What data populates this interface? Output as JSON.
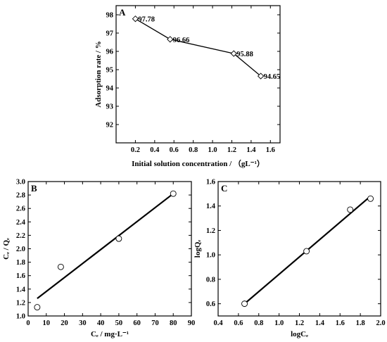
{
  "chart_data": [
    {
      "id": "A",
      "type": "line",
      "panel_label": "A",
      "title": "",
      "xlabel": "Initial solution concentration / （gL⁻¹）",
      "ylabel": "Adsorption rate / %",
      "xlim": [
        0.0,
        1.7
      ],
      "ylim": [
        91,
        98.5
      ],
      "x_ticks": [
        0.2,
        0.4,
        0.6,
        0.8,
        1.0,
        1.2,
        1.4,
        1.6
      ],
      "x_tick_labels": [
        "0.2",
        "0.4",
        "0.6",
        "0.8",
        "1.0",
        "1.2",
        "1.4",
        "1.6"
      ],
      "y_ticks": [
        92,
        93,
        94,
        95,
        96,
        97,
        98
      ],
      "y_tick_labels": [
        "92",
        "93",
        "94",
        "95",
        "96",
        "97",
        "98"
      ],
      "series": [
        {
          "marker": "diamond",
          "x": [
            0.2,
            0.56,
            1.22,
            1.5
          ],
          "y": [
            97.78,
            96.66,
            95.88,
            94.65
          ],
          "labels": [
            "97.78",
            "96.66",
            "95.88",
            "94.65"
          ]
        }
      ],
      "grid": false
    },
    {
      "id": "B",
      "type": "scatter",
      "panel_label": "B",
      "title": "",
      "xlabel": "Cₑ / mg·L⁻¹",
      "ylabel": "Cₑ / Qₑ",
      "xlim": [
        0,
        90
      ],
      "ylim": [
        1.0,
        3.0
      ],
      "x_ticks": [
        0,
        10,
        20,
        30,
        40,
        50,
        60,
        70,
        80,
        90
      ],
      "x_tick_labels": [
        "0",
        "10",
        "20",
        "30",
        "40",
        "50",
        "60",
        "70",
        "80",
        "90"
      ],
      "y_ticks": [
        1.0,
        1.2,
        1.4,
        1.6,
        1.8,
        2.0,
        2.2,
        2.4,
        2.6,
        2.8,
        3.0
      ],
      "y_tick_labels": [
        "1.0",
        "1.2",
        "1.4",
        "1.6",
        "1.8",
        "2.0",
        "2.2",
        "2.4",
        "2.6",
        "2.8",
        "3.0"
      ],
      "points": {
        "x": [
          5,
          18,
          50,
          80
        ],
        "y": [
          1.13,
          1.73,
          2.15,
          2.82
        ]
      },
      "fit_line": {
        "x": [
          5,
          80
        ],
        "y": [
          1.26,
          2.82
        ]
      },
      "grid": false
    },
    {
      "id": "C",
      "type": "scatter",
      "panel_label": "C",
      "title": "",
      "xlabel": "logCₑ",
      "ylabel": "logQₑ",
      "xlim": [
        0.4,
        2.0
      ],
      "ylim": [
        0.5,
        1.6
      ],
      "x_ticks": [
        0.4,
        0.6,
        0.8,
        1.0,
        1.2,
        1.4,
        1.6,
        1.8,
        2.0
      ],
      "x_tick_labels": [
        "0.4",
        "0.6",
        "0.8",
        "1.0",
        "1.2",
        "1.4",
        "1.6",
        "1.8",
        "2.0"
      ],
      "y_ticks": [
        0.6,
        0.8,
        1.0,
        1.2,
        1.4,
        1.6
      ],
      "y_tick_labels": [
        "0.6",
        "0.8",
        "1.0",
        "1.2",
        "1.4",
        "1.6"
      ],
      "points": {
        "x": [
          0.66,
          1.27,
          1.7,
          1.9
        ],
        "y": [
          0.6,
          1.03,
          1.37,
          1.46
        ]
      },
      "fit_line": {
        "x": [
          0.66,
          1.9
        ],
        "y": [
          0.6,
          1.48
        ]
      },
      "grid": false
    }
  ]
}
